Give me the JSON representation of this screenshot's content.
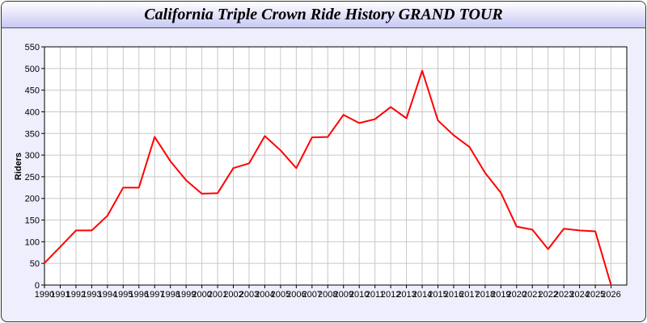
{
  "chart_data": {
    "type": "line",
    "title": "California Triple Crown Ride History GRAND TOUR",
    "xlabel": "",
    "ylabel": "Riders",
    "xlim": [
      1990,
      2027
    ],
    "ylim": [
      0,
      550
    ],
    "yticks": [
      0,
      50,
      100,
      150,
      200,
      250,
      300,
      350,
      400,
      450,
      500,
      550
    ],
    "grid": true,
    "line_color": "#ff0000",
    "x": [
      1990,
      1991,
      1992,
      1993,
      1994,
      1995,
      1996,
      1997,
      1998,
      1999,
      2000,
      2001,
      2002,
      2003,
      2004,
      2005,
      2006,
      2007,
      2008,
      2009,
      2010,
      2011,
      2012,
      2013,
      2014,
      2015,
      2016,
      2017,
      2018,
      2019,
      2020,
      2021,
      2022,
      2023,
      2024,
      2025,
      2026
    ],
    "series": [
      {
        "values": [
          51,
          88,
          126,
          126,
          160,
          225,
          225,
          342,
          286,
          242,
          211,
          212,
          270,
          281,
          344,
          311,
          270,
          341,
          342,
          393,
          374,
          383,
          411,
          385,
          495,
          380,
          346,
          319,
          259,
          213,
          135,
          128,
          83,
          130,
          126,
          124,
          0
        ]
      }
    ]
  }
}
